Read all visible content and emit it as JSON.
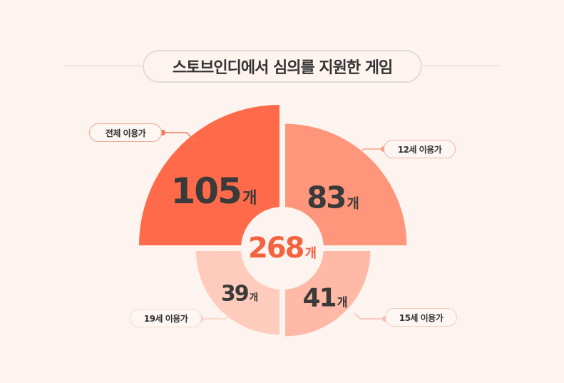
{
  "title": "스토브인디에서 심의를 지원한 게임",
  "unit": "개",
  "chart_data": {
    "type": "polar-area",
    "title": "스토브인디에서 심의를 지원한 게임",
    "categories": [
      "전체 이용가",
      "12세 이용가",
      "15세 이용가",
      "19세 이용가"
    ],
    "values": [
      105,
      83,
      41,
      39
    ],
    "total": 268,
    "colors": [
      "#ff6b4a",
      "#ff967b",
      "#ffb9a6",
      "#ffcbbd"
    ],
    "total_color": "#f4623f"
  },
  "labels": {
    "v0": "105",
    "v1": "83",
    "v2": "41",
    "v3": "39",
    "total": "268"
  }
}
